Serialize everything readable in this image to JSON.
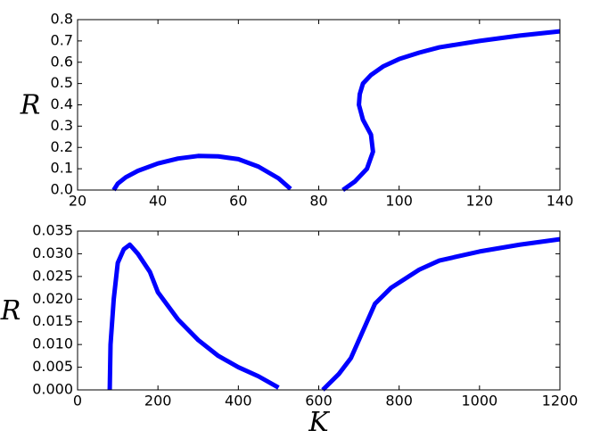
{
  "chart_data": [
    {
      "type": "line",
      "ylabel": "R",
      "x": [
        29,
        30,
        32,
        35,
        40,
        45,
        50,
        55,
        60,
        65,
        70,
        73,
        null,
        86,
        89,
        92,
        93.5,
        93,
        91,
        90,
        90.2,
        91,
        93,
        96,
        100,
        105,
        110,
        120,
        130,
        140
      ],
      "series": [
        {
          "color": "#0000ff",
          "values": [
            0,
            0.03,
            0.06,
            0.09,
            0.125,
            0.148,
            0.16,
            0.158,
            0.145,
            0.11,
            0.055,
            0.005,
            null,
            0,
            0.04,
            0.1,
            0.18,
            0.26,
            0.33,
            0.4,
            0.45,
            0.5,
            0.54,
            0.58,
            0.615,
            0.645,
            0.67,
            0.7,
            0.725,
            0.745
          ]
        }
      ],
      "xlim": [
        20,
        140
      ],
      "ylim": [
        0,
        0.8
      ],
      "xticks": [
        20,
        40,
        60,
        80,
        100,
        120,
        140
      ],
      "yticks": [
        {
          "value": 0,
          "label": "0.0"
        },
        0.1,
        0.2,
        0.3,
        0.4,
        0.5,
        0.6,
        0.7,
        0.8
      ]
    },
    {
      "type": "line",
      "ylabel": "R",
      "xlabel": "K",
      "x": [
        80,
        82,
        90,
        100,
        115,
        130,
        150,
        180,
        200,
        250,
        300,
        350,
        400,
        450,
        500,
        null,
        610,
        650,
        680,
        710,
        740,
        780,
        850,
        900,
        1000,
        1100,
        1200
      ],
      "series": [
        {
          "color": "#0000ff",
          "values": [
            0,
            0.01,
            0.02,
            0.028,
            0.031,
            0.032,
            0.03,
            0.026,
            0.0215,
            0.0155,
            0.011,
            0.0075,
            0.005,
            0.003,
            0.0005,
            null,
            0,
            0.0035,
            0.007,
            0.013,
            0.019,
            0.0225,
            0.0265,
            0.0285,
            0.0305,
            0.032,
            0.0332
          ]
        }
      ],
      "xlim": [
        0,
        1200
      ],
      "ylim": [
        0,
        0.035
      ],
      "xticks": [
        0,
        200,
        400,
        600,
        800,
        1000,
        1200
      ],
      "yticks": [
        {
          "value": 0,
          "label": "0.000"
        },
        0.005,
        {
          "value": 0.01,
          "label": "0.010"
        },
        0.015,
        {
          "value": 0.02,
          "label": "0.020"
        },
        0.025,
        {
          "value": 0.03,
          "label": "0.030"
        },
        0.035
      ]
    }
  ]
}
